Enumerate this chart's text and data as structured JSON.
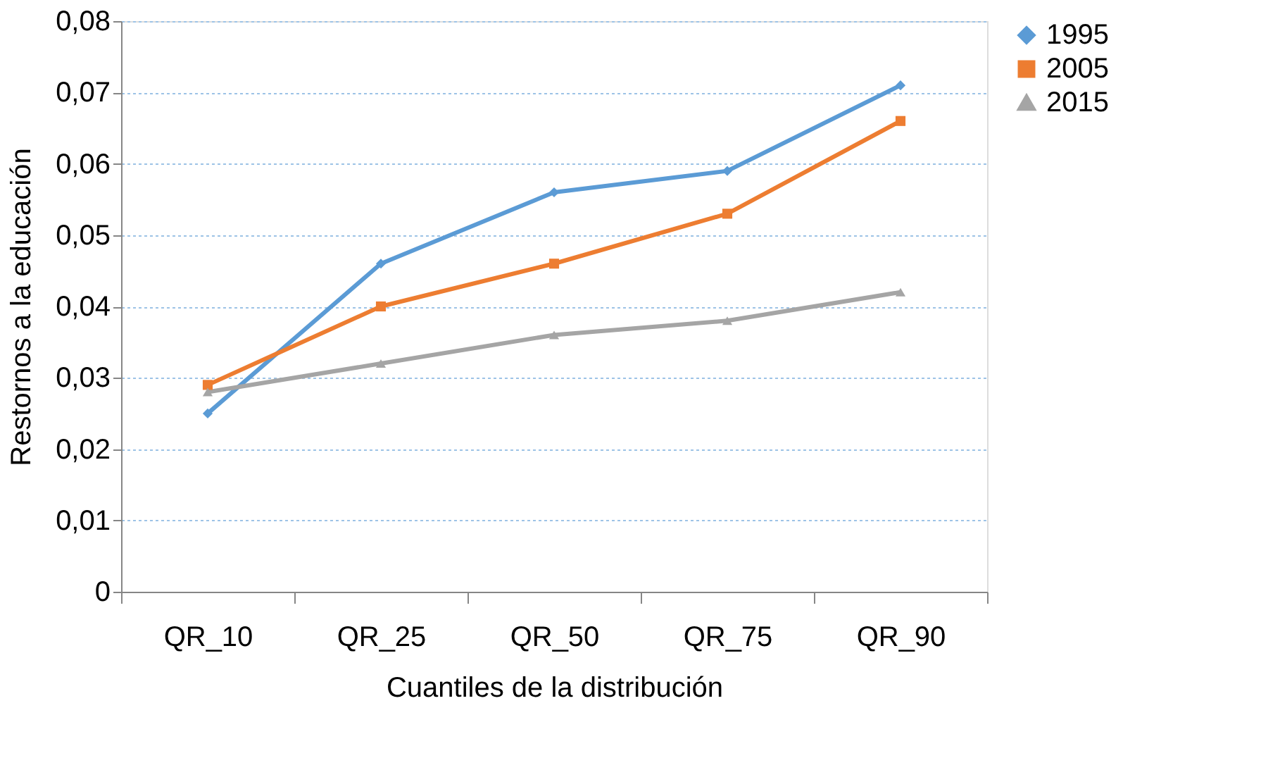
{
  "chart_data": {
    "type": "line",
    "xlabel": "Cuantiles de la distribución",
    "ylabel": "Restornos a la educación",
    "categories": [
      "QR_10",
      "QR_25",
      "QR_50",
      "QR_75",
      "QR_90"
    ],
    "series": [
      {
        "name": "1995",
        "color": "#5b9bd5",
        "marker": "diamond",
        "values": [
          0.025,
          0.046,
          0.056,
          0.059,
          0.071
        ]
      },
      {
        "name": "2005",
        "color": "#ed7d31",
        "marker": "square",
        "values": [
          0.029,
          0.04,
          0.046,
          0.053,
          0.066
        ]
      },
      {
        "name": "2015",
        "color": "#a5a5a5",
        "marker": "triangle",
        "values": [
          0.028,
          0.032,
          0.036,
          0.038,
          0.042
        ]
      }
    ],
    "ylim": [
      0,
      0.08
    ],
    "yticks": [
      {
        "value": 0,
        "label": "0"
      },
      {
        "value": 0.01,
        "label": "0,01"
      },
      {
        "value": 0.02,
        "label": "0,02"
      },
      {
        "value": 0.03,
        "label": "0,03"
      },
      {
        "value": 0.04,
        "label": "0,04"
      },
      {
        "value": 0.05,
        "label": "0,05"
      },
      {
        "value": 0.06,
        "label": "0,06"
      },
      {
        "value": 0.07,
        "label": "0,07"
      },
      {
        "value": 0.08,
        "label": "0,08"
      }
    ],
    "grid": "y",
    "legend": "right",
    "line_style": "solid"
  }
}
